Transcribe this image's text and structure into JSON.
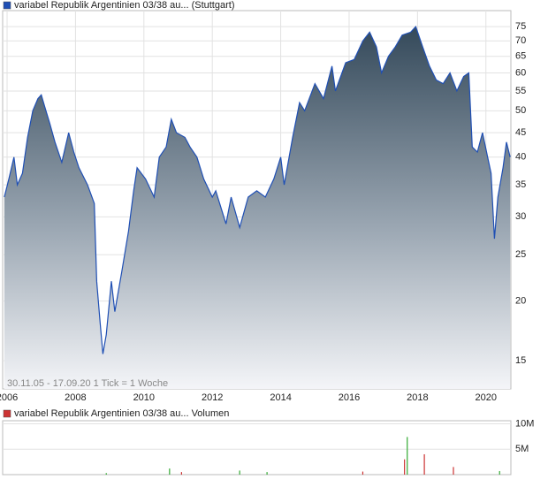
{
  "chart_data": [
    {
      "type": "area",
      "log_y": true,
      "grid": true,
      "annotation": "30.11.05 - 17.09.20   1 Tick = 1 Woche",
      "x": [
        2005.92,
        2006.05,
        2006.2,
        2006.3,
        2006.45,
        2006.6,
        2006.75,
        2006.9,
        2007.0,
        2007.1,
        2007.25,
        2007.4,
        2007.6,
        2007.8,
        2007.95,
        2008.1,
        2008.35,
        2008.55,
        2008.62,
        2008.72,
        2008.8,
        2008.9,
        2009.05,
        2009.15,
        2009.35,
        2009.55,
        2009.7,
        2009.8,
        2010.05,
        2010.3,
        2010.45,
        2010.65,
        2010.8,
        2010.95,
        2011.2,
        2011.35,
        2011.55,
        2011.75,
        2012.0,
        2012.1,
        2012.4,
        2012.55,
        2012.8,
        2013.05,
        2013.3,
        2013.55,
        2013.8,
        2014.0,
        2014.1,
        2014.35,
        2014.55,
        2014.7,
        2015.0,
        2015.25,
        2015.5,
        2015.6,
        2015.9,
        2016.15,
        2016.4,
        2016.6,
        2016.8,
        2016.95,
        2017.15,
        2017.35,
        2017.55,
        2017.8,
        2017.95,
        2018.15,
        2018.35,
        2018.55,
        2018.75,
        2018.95,
        2019.15,
        2019.35,
        2019.5,
        2019.6,
        2019.75,
        2019.9,
        2020.05,
        2020.15,
        2020.25,
        2020.35,
        2020.5,
        2020.6,
        2020.71
      ],
      "series": [
        {
          "name": "variabel Republik Argentinien 03/38 au... (Stuttgart)",
          "color": "#1f4fb4",
          "values": [
            33,
            36,
            40,
            35,
            37,
            44,
            50,
            53,
            54,
            51,
            47,
            43,
            39,
            45,
            41,
            38,
            35,
            32,
            22,
            18,
            15.5,
            17,
            22,
            19,
            23,
            28,
            34,
            38,
            36,
            33,
            40,
            42,
            48,
            45,
            44,
            42,
            40,
            36,
            33,
            34,
            29,
            33,
            28.5,
            33,
            34,
            33,
            36,
            40,
            35,
            44,
            52,
            50,
            57,
            53,
            62,
            55,
            63,
            64,
            70,
            73,
            68,
            60,
            65,
            68,
            72,
            73,
            75,
            68,
            62,
            58,
            57,
            60,
            55,
            59,
            60,
            42,
            41,
            45,
            40,
            37,
            27,
            33,
            38,
            43,
            40
          ]
        }
      ],
      "xlim": [
        2005.87,
        2020.73
      ],
      "xticks": [
        2006,
        2008,
        2010,
        2012,
        2014,
        2016,
        2018,
        2020
      ],
      "ylim": [
        13.1,
        81
      ],
      "yticks": [
        15,
        20,
        25,
        30,
        35,
        40,
        45,
        50,
        55,
        60,
        65,
        70,
        75
      ]
    },
    {
      "type": "bar",
      "grid": true,
      "x": [
        2008.9,
        2010.75,
        2011.1,
        2012.8,
        2013.6,
        2016.4,
        2017.62,
        2017.7,
        2018.2,
        2019.05,
        2020.4
      ],
      "series": [
        {
          "name": "variabel Republik Argentinien 03/38 au... Volumen",
          "color": "#cc3333",
          "values": [
            300000,
            1200000,
            500000,
            800000,
            500000,
            600000,
            3000000,
            7400000,
            4000000,
            1500000,
            700000
          ],
          "bar_colors": [
            "#33aa33",
            "#33aa33",
            "#cc3333",
            "#33aa33",
            "#33aa33",
            "#cc3333",
            "#cc3333",
            "#33aa33",
            "#cc3333",
            "#cc3333",
            "#33aa33"
          ]
        }
      ],
      "xlim": [
        2005.87,
        2020.73
      ],
      "ylim": [
        0,
        10600000
      ],
      "yticks": [
        {
          "value": 5000000,
          "label": "5M"
        },
        {
          "value": 10000000,
          "label": "10M"
        }
      ]
    }
  ]
}
